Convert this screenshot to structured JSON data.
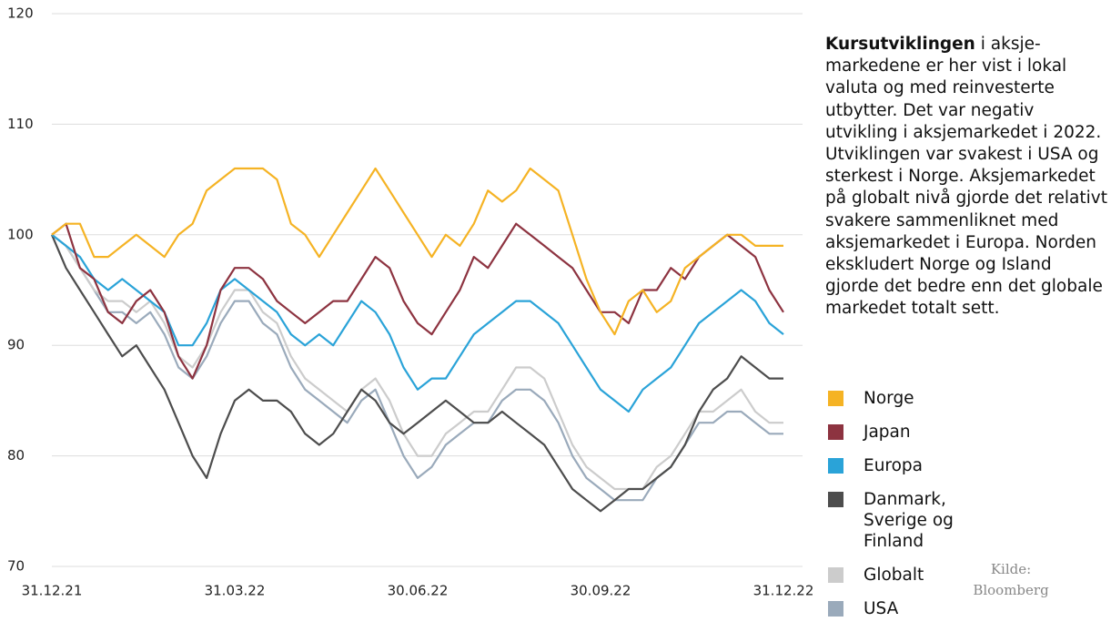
{
  "chart_data": {
    "type": "line",
    "categories": [
      "31.12.21",
      null,
      null,
      null,
      null,
      null,
      null,
      null,
      null,
      null,
      null,
      null,
      null,
      "31.03.22",
      null,
      null,
      null,
      null,
      null,
      null,
      null,
      null,
      null,
      null,
      null,
      null,
      "30.06.22",
      null,
      null,
      null,
      null,
      null,
      null,
      null,
      null,
      null,
      null,
      null,
      null,
      "30.09.22",
      null,
      null,
      null,
      null,
      null,
      null,
      null,
      null,
      null,
      null,
      null,
      null,
      "31.12.22"
    ],
    "ylim": [
      70,
      120
    ],
    "yticks": [
      70,
      80,
      90,
      100,
      110,
      120
    ],
    "grid": true,
    "series": [
      {
        "name": "Norge",
        "color": "#f5b324",
        "values": [
          100,
          101,
          101,
          98,
          98,
          99,
          100,
          99,
          98,
          100,
          101,
          104,
          105,
          106,
          106,
          106,
          105,
          101,
          100,
          98,
          100,
          102,
          104,
          106,
          104,
          102,
          100,
          98,
          100,
          99,
          101,
          104,
          103,
          104,
          106,
          105,
          104,
          100,
          96,
          93,
          91,
          94,
          95,
          93,
          94,
          97,
          98,
          99,
          100,
          100,
          99,
          99,
          99
        ]
      },
      {
        "name": "Japan",
        "color": "#8d3340",
        "values": [
          100,
          101,
          97,
          96,
          93,
          92,
          94,
          95,
          93,
          89,
          87,
          90,
          95,
          97,
          97,
          96,
          94,
          93,
          92,
          93,
          94,
          94,
          96,
          98,
          97,
          94,
          92,
          91,
          93,
          95,
          98,
          97,
          99,
          101,
          100,
          99,
          98,
          97,
          95,
          93,
          93,
          92,
          95,
          95,
          97,
          96,
          98,
          99,
          100,
          99,
          98,
          95,
          93
        ]
      },
      {
        "name": "Europa",
        "color": "#2aa3d8",
        "values": [
          100,
          99,
          98,
          96,
          95,
          96,
          95,
          94,
          93,
          90,
          90,
          92,
          95,
          96,
          95,
          94,
          93,
          91,
          90,
          91,
          90,
          92,
          94,
          93,
          91,
          88,
          86,
          87,
          87,
          89,
          91,
          92,
          93,
          94,
          94,
          93,
          92,
          90,
          88,
          86,
          85,
          84,
          86,
          87,
          88,
          90,
          92,
          93,
          94,
          95,
          94,
          92,
          91
        ]
      },
      {
        "name": "Danmark, Sverige og Finland",
        "color": "#4d4d4d",
        "values": [
          100,
          97,
          95,
          93,
          91,
          89,
          90,
          88,
          86,
          83,
          80,
          78,
          82,
          85,
          86,
          85,
          85,
          84,
          82,
          81,
          82,
          84,
          86,
          85,
          83,
          82,
          83,
          84,
          85,
          84,
          83,
          83,
          84,
          83,
          82,
          81,
          79,
          77,
          76,
          75,
          76,
          77,
          77,
          78,
          79,
          81,
          84,
          86,
          87,
          89,
          88,
          87,
          87
        ]
      },
      {
        "name": "Globalt",
        "color": "#cccccc",
        "values": [
          100,
          99,
          97,
          95,
          94,
          94,
          93,
          94,
          92,
          89,
          88,
          90,
          93,
          95,
          95,
          93,
          92,
          89,
          87,
          86,
          85,
          84,
          86,
          87,
          85,
          82,
          80,
          80,
          82,
          83,
          84,
          84,
          86,
          88,
          88,
          87,
          84,
          81,
          79,
          78,
          77,
          77,
          77,
          79,
          80,
          82,
          84,
          84,
          85,
          86,
          84,
          83,
          83
        ]
      },
      {
        "name": "USA",
        "color": "#9aaabb",
        "values": [
          100,
          99,
          97,
          95,
          93,
          93,
          92,
          93,
          91,
          88,
          87,
          89,
          92,
          94,
          94,
          92,
          91,
          88,
          86,
          85,
          84,
          83,
          85,
          86,
          83,
          80,
          78,
          79,
          81,
          82,
          83,
          83,
          85,
          86,
          86,
          85,
          83,
          80,
          78,
          77,
          76,
          76,
          76,
          78,
          79,
          81,
          83,
          83,
          84,
          84,
          83,
          82,
          82
        ]
      }
    ],
    "annotation_bold": "Kursutviklingen",
    "annotation": "i aksje-markedene er her vist i lokal valuta og med reinvesterte utbytter. Det var negativ utvikling i aksjemarkedet i 2022. Utviklingen var svakest i USA og sterkest i Norge. Aksjemarkedet på globalt nivå gjorde det relativt svakere sammenliknet med aksjemarkedet i Europa. Norden ekskludert Norge og Island gjorde det bedre enn det globale markedet totalt sett.",
    "source": "Kilde: Bloomberg"
  }
}
